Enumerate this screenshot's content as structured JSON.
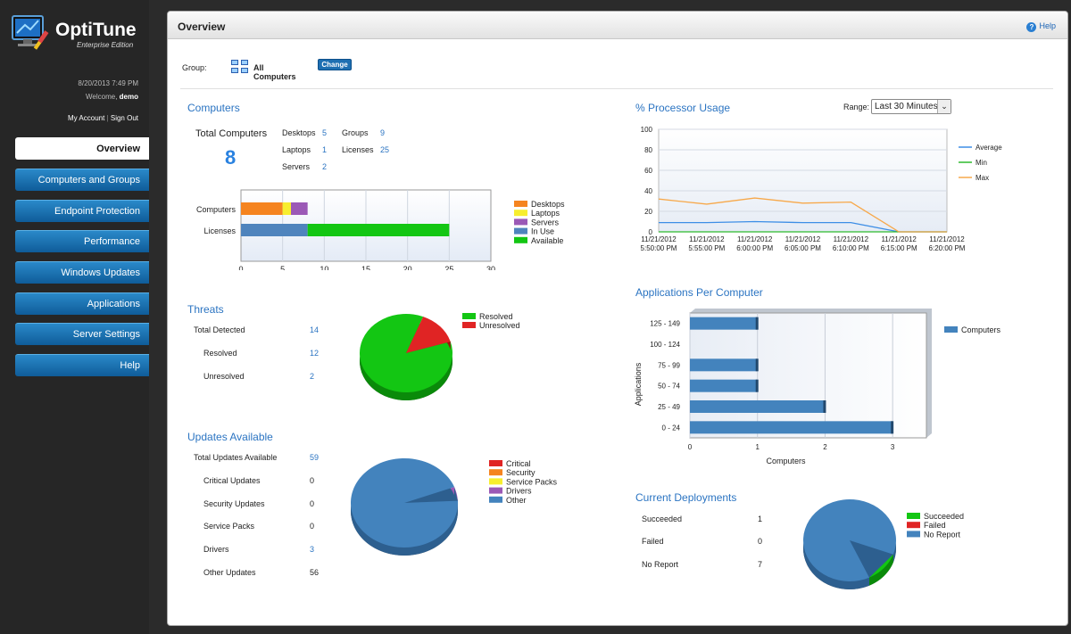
{
  "app": {
    "title": "OptiTune",
    "subtitle": "Enterprise Edition"
  },
  "sidebar": {
    "datetime": "8/20/2013 7:49 PM",
    "welcome_prefix": "Welcome, ",
    "user": "demo",
    "my_account": "My Account",
    "separator": " | ",
    "sign_out": "Sign Out",
    "nav": [
      "Overview",
      "Computers and Groups",
      "Endpoint Protection",
      "Performance",
      "Windows Updates",
      "Applications",
      "Server Settings",
      "Help"
    ]
  },
  "header": {
    "title": "Overview",
    "help": "Help"
  },
  "group": {
    "label": "Group:",
    "name": "All Computers",
    "change": "Change"
  },
  "computers": {
    "title": "Computers",
    "total_label": "Total Computers",
    "total": "8",
    "stats": [
      {
        "label": "Desktops",
        "value": "5"
      },
      {
        "label": "Laptops",
        "value": "1"
      },
      {
        "label": "Servers",
        "value": "2"
      },
      {
        "label": "Groups",
        "value": "9"
      },
      {
        "label": "Licenses",
        "value": "25"
      }
    ]
  },
  "threats": {
    "title": "Threats",
    "rows": [
      {
        "label": "Total Detected",
        "value": "14"
      },
      {
        "label": "Resolved",
        "value": "12"
      },
      {
        "label": "Unresolved",
        "value": "2"
      }
    ]
  },
  "updates": {
    "title": "Updates Available",
    "rows": [
      {
        "label": "Total Updates Available",
        "value": "59"
      },
      {
        "label": "Critical Updates",
        "value": "0"
      },
      {
        "label": "Security Updates",
        "value": "0"
      },
      {
        "label": "Service Packs",
        "value": "0"
      },
      {
        "label": "Drivers",
        "value": "3"
      },
      {
        "label": "Other Updates",
        "value": "56"
      }
    ]
  },
  "processor": {
    "title": "% Processor Usage",
    "range_label": "Range:",
    "range_value": "Last 30 Minutes"
  },
  "apps": {
    "title": "Applications Per Computer"
  },
  "deployments": {
    "title": "Current Deployments",
    "rows": [
      {
        "label": "Succeeded",
        "value": "1"
      },
      {
        "label": "Failed",
        "value": "0"
      },
      {
        "label": "No Report",
        "value": "7"
      }
    ]
  },
  "colors": {
    "desktops": "#f5841f",
    "laptops": "#f7ee2f",
    "servers": "#9b59b6",
    "in_use": "#4f84bd",
    "available": "#13c613",
    "resolved": "#13c613",
    "unresolved": "#e02424",
    "other": "#4383bd",
    "average": "#3d8ee6",
    "min": "#2dbb2d",
    "max": "#f7a84a"
  },
  "chart_data": [
    {
      "type": "bar",
      "orientation": "horizontal",
      "stacked": true,
      "categories": [
        "Computers",
        "Licenses"
      ],
      "series": [
        {
          "name": "Desktops",
          "values": [
            5,
            0
          ]
        },
        {
          "name": "Laptops",
          "values": [
            1,
            0
          ]
        },
        {
          "name": "Servers",
          "values": [
            2,
            0
          ]
        },
        {
          "name": "In Use",
          "values": [
            0,
            8
          ]
        },
        {
          "name": "Available",
          "values": [
            0,
            17
          ]
        }
      ],
      "xlim": [
        0,
        30
      ],
      "xticks": [
        "0",
        "5",
        "10",
        "15",
        "20",
        "25",
        "30"
      ],
      "legend": "right"
    },
    {
      "type": "pie",
      "series": [
        {
          "name": "Resolved",
          "value": 12
        },
        {
          "name": "Unresolved",
          "value": 2
        }
      ],
      "legend": "right"
    },
    {
      "type": "pie",
      "series": [
        {
          "name": "Critical",
          "value": 0
        },
        {
          "name": "Security",
          "value": 0
        },
        {
          "name": "Service Packs",
          "value": 0
        },
        {
          "name": "Drivers",
          "value": 3
        },
        {
          "name": "Other",
          "value": 56
        }
      ],
      "legend": "right"
    },
    {
      "type": "line",
      "x": [
        "11/21/2012 5:50:00 PM",
        "11/21/2012 5:55:00 PM",
        "11/21/2012 6:00:00 PM",
        "11/21/2012 6:05:00 PM",
        "11/21/2012 6:10:00 PM",
        "11/21/2012 6:15:00 PM",
        "11/21/2012 6:20:00 PM"
      ],
      "series": [
        {
          "name": "Average",
          "values": [
            9,
            9,
            10,
            9,
            9,
            0,
            0
          ]
        },
        {
          "name": "Min",
          "values": [
            0,
            0,
            0,
            0,
            0,
            0,
            0
          ]
        },
        {
          "name": "Max",
          "values": [
            32,
            27,
            33,
            28,
            29,
            0,
            0
          ]
        }
      ],
      "ylim": [
        0,
        100
      ],
      "yticks": [
        "0",
        "20",
        "40",
        "60",
        "80",
        "100"
      ],
      "grid": true,
      "legend": "right"
    },
    {
      "type": "bar",
      "orientation": "horizontal",
      "categories": [
        "125 - 149",
        "100 - 124",
        "75 - 99",
        "50 - 74",
        "25 - 49",
        "0 - 24"
      ],
      "series": [
        {
          "name": "Computers",
          "values": [
            1,
            0,
            1,
            1,
            2,
            3
          ]
        }
      ],
      "xlabel": "Computers",
      "ylabel": "Applications",
      "xlim": [
        0,
        3.5
      ],
      "xticks": [
        "0",
        "1",
        "2",
        "3"
      ],
      "legend": "right"
    },
    {
      "type": "pie",
      "series": [
        {
          "name": "Succeeded",
          "value": 1
        },
        {
          "name": "Failed",
          "value": 0
        },
        {
          "name": "No Report",
          "value": 7
        }
      ],
      "legend": "right"
    }
  ]
}
